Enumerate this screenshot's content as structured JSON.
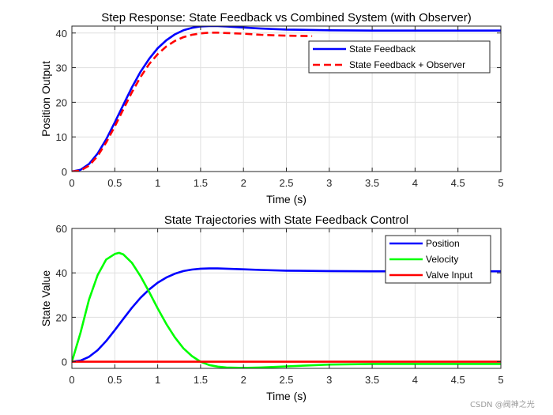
{
  "chart_data": [
    {
      "type": "line",
      "title": "Step Response: State Feedback vs Combined System (with Observer)",
      "xlabel": "Time (s)",
      "ylabel": "Position Output",
      "xlim": [
        0,
        5
      ],
      "ylim": [
        0,
        42
      ],
      "xticks": [
        0,
        0.5,
        1,
        1.5,
        2,
        2.5,
        3,
        3.5,
        4,
        4.5,
        5
      ],
      "xtick_labels": [
        "0",
        "0.5",
        "1",
        "1.5",
        "2",
        "2.5",
        "3",
        "3.5",
        "4",
        "4.5",
        "5"
      ],
      "yticks": [
        0,
        10,
        20,
        30,
        40
      ],
      "ytick_labels": [
        "0",
        "10",
        "20",
        "30",
        "40"
      ],
      "grid": true,
      "legend_position": "top-right",
      "series": [
        {
          "name": "State Feedback",
          "color": "#0000ff",
          "dash": "solid",
          "x": [
            0,
            0.1,
            0.2,
            0.3,
            0.4,
            0.5,
            0.6,
            0.7,
            0.8,
            0.9,
            1.0,
            1.1,
            1.2,
            1.3,
            1.4,
            1.5,
            1.6,
            1.7,
            1.8,
            2.0,
            2.2,
            2.5,
            3.0,
            3.5,
            4.0,
            4.5,
            5.0
          ],
          "y": [
            0,
            0.5,
            2.2,
            5.2,
            9.3,
            14.2,
            19.3,
            24.3,
            28.8,
            32.5,
            35.6,
            37.9,
            39.6,
            40.8,
            41.5,
            41.9,
            42.0,
            42.0,
            41.9,
            41.6,
            41.3,
            41.0,
            40.8,
            40.7,
            40.7,
            40.7,
            40.7
          ]
        },
        {
          "name": "State Feedback + Observer",
          "color": "#ff0000",
          "dash": "dashed",
          "x": [
            0,
            0.1,
            0.2,
            0.3,
            0.4,
            0.5,
            0.6,
            0.7,
            0.8,
            0.9,
            1.0,
            1.1,
            1.2,
            1.3,
            1.4,
            1.5,
            1.6,
            1.7,
            1.8,
            2.0,
            2.2,
            2.4,
            2.6,
            2.8
          ],
          "y": [
            0,
            0.3,
            1.7,
            4.5,
            8.4,
            13.0,
            18.0,
            22.9,
            27.3,
            31.0,
            33.9,
            36.1,
            37.7,
            38.8,
            39.5,
            39.9,
            40.1,
            40.1,
            40.0,
            39.8,
            39.5,
            39.3,
            39.2,
            39.1
          ]
        }
      ]
    },
    {
      "type": "line",
      "title": "State Trajectories with State Feedback Control",
      "xlabel": "Time (s)",
      "ylabel": "State Value",
      "xlim": [
        0,
        5
      ],
      "ylim": [
        -3,
        60
      ],
      "xticks": [
        0,
        0.5,
        1,
        1.5,
        2,
        2.5,
        3,
        3.5,
        4,
        4.5,
        5
      ],
      "xtick_labels": [
        "0",
        "0.5",
        "1",
        "1.5",
        "2",
        "2.5",
        "3",
        "3.5",
        "4",
        "4.5",
        "5"
      ],
      "yticks": [
        0,
        20,
        40,
        60
      ],
      "ytick_labels": [
        "0",
        "20",
        "40",
        "60"
      ],
      "grid": true,
      "legend_position": "top-right",
      "series": [
        {
          "name": "Position",
          "color": "#0000ff",
          "dash": "solid",
          "x": [
            0,
            0.1,
            0.2,
            0.3,
            0.4,
            0.5,
            0.6,
            0.7,
            0.8,
            0.9,
            1.0,
            1.1,
            1.2,
            1.3,
            1.4,
            1.5,
            1.6,
            1.7,
            1.8,
            2.0,
            2.2,
            2.5,
            3.0,
            3.5,
            4.0,
            4.5,
            5.0
          ],
          "y": [
            0,
            0.5,
            2.2,
            5.2,
            9.3,
            14.2,
            19.3,
            24.3,
            28.8,
            32.5,
            35.6,
            37.9,
            39.6,
            40.8,
            41.5,
            41.9,
            42.0,
            42.0,
            41.9,
            41.6,
            41.3,
            41.0,
            40.8,
            40.7,
            40.7,
            40.7,
            40.7
          ]
        },
        {
          "name": "Velocity",
          "color": "#00ff00",
          "dash": "solid",
          "x": [
            0,
            0.1,
            0.2,
            0.3,
            0.4,
            0.5,
            0.55,
            0.6,
            0.7,
            0.8,
            0.9,
            1.0,
            1.1,
            1.2,
            1.3,
            1.4,
            1.5,
            1.6,
            1.7,
            1.8,
            2.0,
            2.2,
            2.5,
            3.0,
            3.5,
            4.0,
            4.5,
            5.0
          ],
          "y": [
            0,
            13,
            28,
            39,
            46,
            48.5,
            49,
            48.3,
            44.5,
            38.5,
            31.5,
            24,
            17,
            11,
            6,
            2.5,
            0,
            -1.5,
            -2.2,
            -2.6,
            -2.8,
            -2.6,
            -2.1,
            -1.3,
            -1.0,
            -1.0,
            -1.0,
            -1.0
          ]
        },
        {
          "name": "Valve Input",
          "color": "#ff0000",
          "dash": "solid",
          "x": [
            0,
            5
          ],
          "y": [
            0,
            0
          ]
        }
      ]
    }
  ],
  "watermark": "CSDN @阀神之光"
}
